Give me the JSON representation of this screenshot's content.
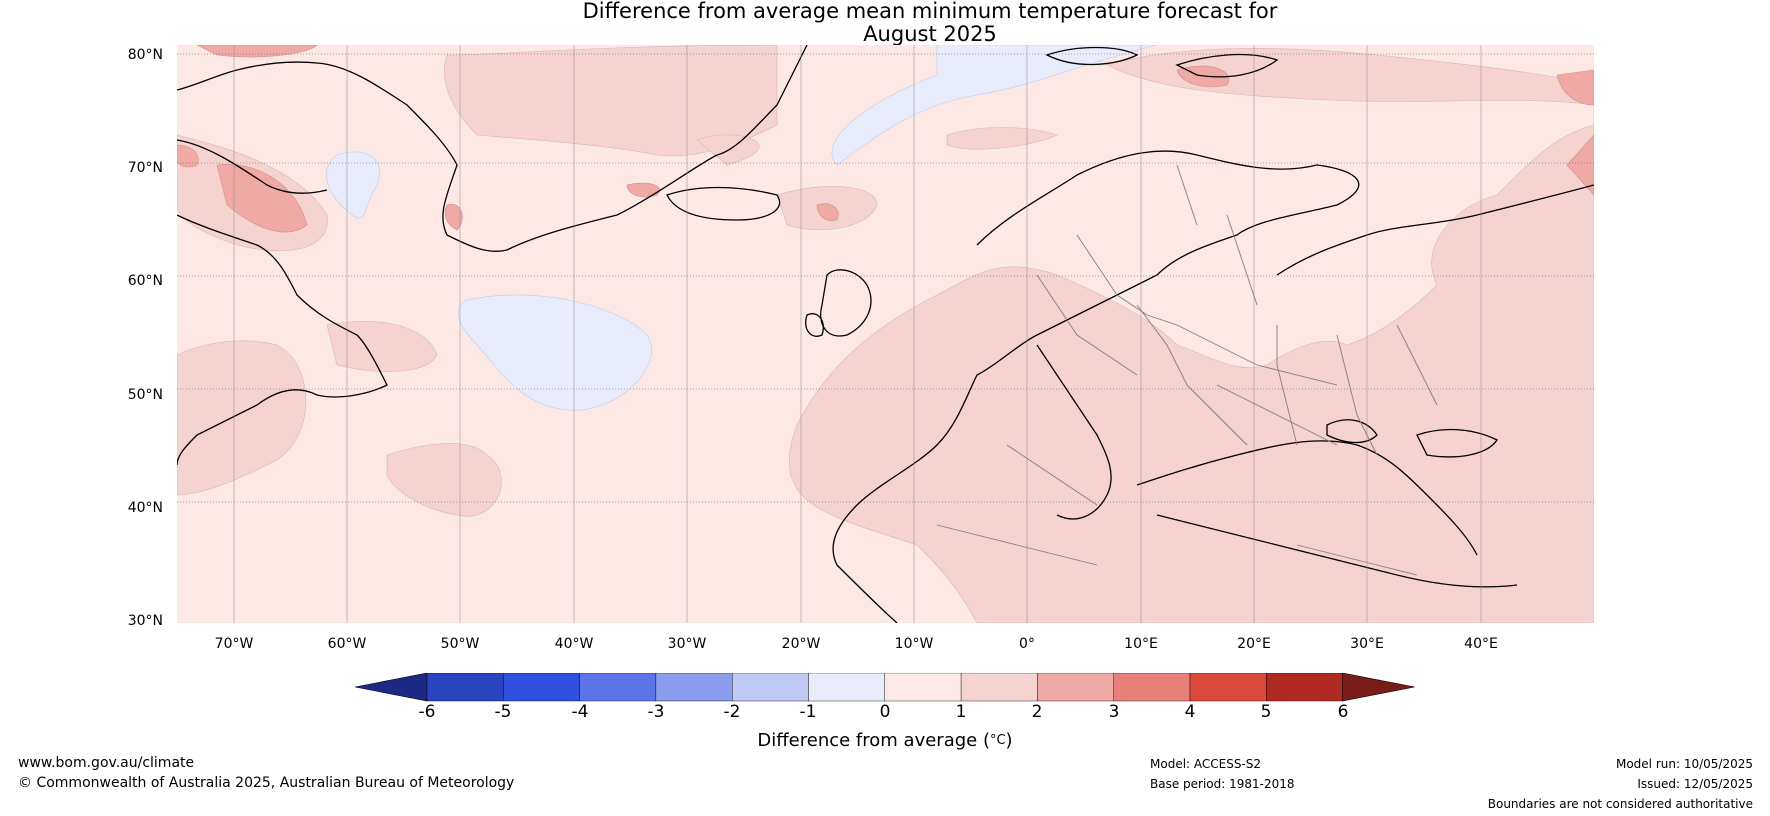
{
  "title_line1": "Difference from average mean minimum temperature forecast for",
  "title_line2": "August 2025",
  "lat_labels": [
    "80°N",
    "70°N",
    "60°N",
    "50°N",
    "40°N",
    "30°N"
  ],
  "lon_labels": [
    "70°W",
    "60°W",
    "50°W",
    "40°W",
    "30°W",
    "20°W",
    "10°W",
    "0°",
    "10°E",
    "20°E",
    "30°E",
    "40°E"
  ],
  "colorbar": {
    "ticks": [
      "-6",
      "-5",
      "-4",
      "-3",
      "-2",
      "-1",
      "0",
      "1",
      "2",
      "3",
      "4",
      "5",
      "6"
    ],
    "colors": [
      "#1b2a85",
      "#2a44c0",
      "#3050e0",
      "#5c74e8",
      "#8a9ced",
      "#c0c9f4",
      "#e9ecfb",
      "#fce9e6",
      "#f5d3d1",
      "#efaaa6",
      "#e78078",
      "#dc4a3e",
      "#b02a22",
      "#7a1c18"
    ],
    "label": "Difference from average (",
    "label_unit": "°C",
    "label_end": ")"
  },
  "footer": {
    "website": "www.bom.gov.au/climate",
    "copyright": "© Commonwealth of Australia 2025, Australian Bureau of Meteorology",
    "model": "Model: ACCESS-S2",
    "base_period": "Base period: 1981-2018",
    "model_run": "Model run: 10/05/2025",
    "issued": "Issued: 12/05/2025",
    "boundaries": "Boundaries are not considered authoritative"
  }
}
